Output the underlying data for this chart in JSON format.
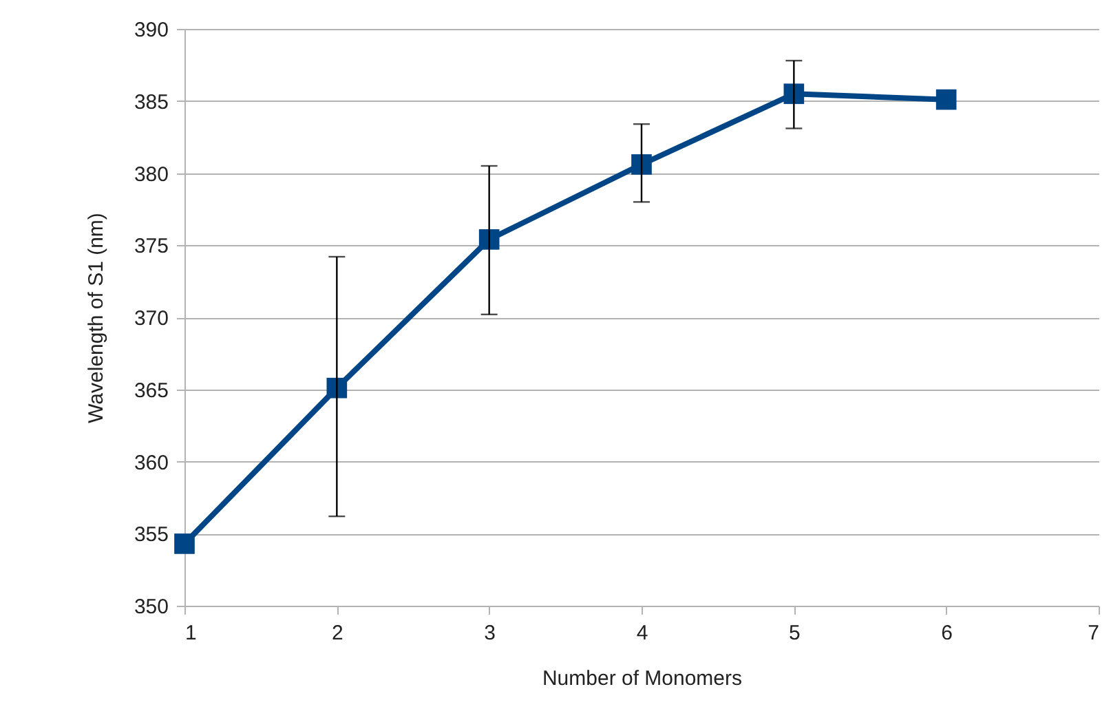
{
  "chart_data": {
    "type": "line",
    "xlabel": "Number of Monomers",
    "ylabel": "Wavelength of S1 (nm)",
    "x": [
      1,
      2,
      3,
      4,
      5,
      6
    ],
    "series": [
      {
        "color": "#004586",
        "values": [
          354.3,
          365.1,
          375.4,
          380.6,
          385.5,
          385.1
        ],
        "errors": [
          null,
          [
            356.2,
            374.2
          ],
          [
            370.2,
            380.5
          ],
          [
            378.0,
            383.4
          ],
          [
            383.1,
            387.8
          ],
          null
        ]
      }
    ],
    "xlim": [
      1,
      7
    ],
    "xticks": [
      1,
      2,
      3,
      4,
      5,
      6,
      7
    ],
    "ylim": [
      350,
      390
    ],
    "yticks": [
      350,
      355,
      360,
      365,
      370,
      375,
      380,
      385,
      390
    ],
    "grid": "y",
    "marker": "square",
    "line_style": "solid"
  }
}
